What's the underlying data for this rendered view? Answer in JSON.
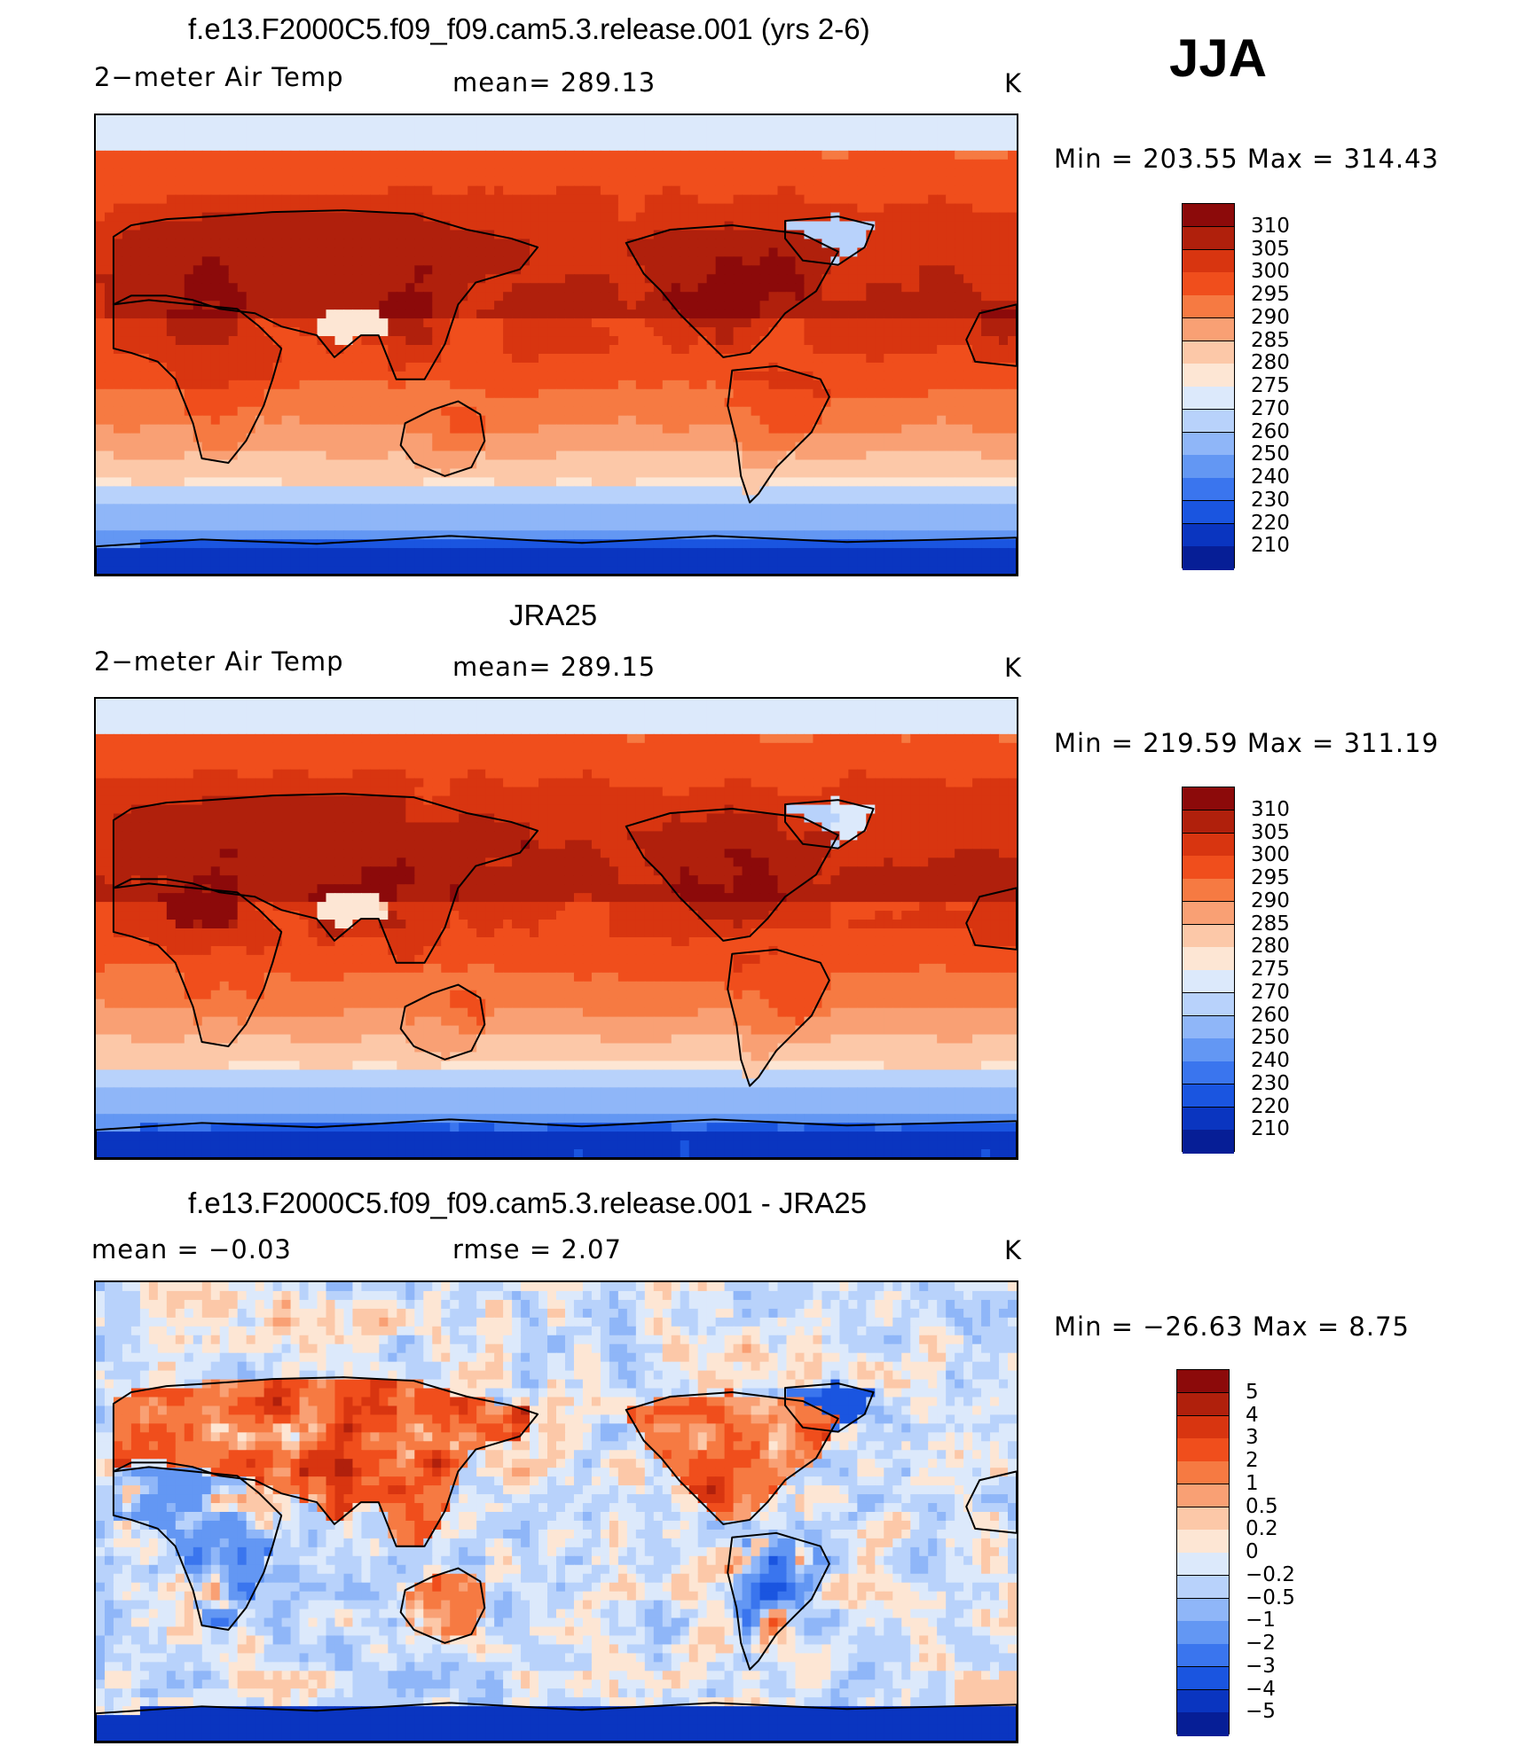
{
  "season": "JJA",
  "panels": [
    {
      "id": "model",
      "title": "f.e13.F2000C5.f09_f09.cam5.3.release.001 (yrs 2-6)",
      "left_label": "2−meter Air Temp",
      "center_label": "mean=  289.13",
      "units": "K",
      "minmax": "Min  =  203.55  Max  =  314.43",
      "field": "abs_model",
      "colorbar": {
        "colors": [
          "#8c0a0a",
          "#b0200c",
          "#d83510",
          "#f04e1c",
          "#f67a42",
          "#f9a074",
          "#fcc8a8",
          "#fde6d4",
          "#dce9fb",
          "#b8d2fb",
          "#8fb6f8",
          "#6397f3",
          "#3a75ee",
          "#1a55e0",
          "#0a35c0",
          "#061e96"
        ],
        "ticks": [
          "310",
          "305",
          "300",
          "295",
          "290",
          "285",
          "280",
          "275",
          "270",
          "260",
          "250",
          "240",
          "230",
          "220",
          "210"
        ]
      }
    },
    {
      "id": "obs",
      "title": "JRA25",
      "left_label": "2−meter Air Temp",
      "center_label": "mean=  289.15",
      "units": "K",
      "minmax": "Min  =  219.59  Max  =  311.19",
      "field": "abs_obs",
      "colorbar": {
        "colors": [
          "#8c0a0a",
          "#b0200c",
          "#d83510",
          "#f04e1c",
          "#f67a42",
          "#f9a074",
          "#fcc8a8",
          "#fde6d4",
          "#dce9fb",
          "#b8d2fb",
          "#8fb6f8",
          "#6397f3",
          "#3a75ee",
          "#1a55e0",
          "#0a35c0",
          "#061e96"
        ],
        "ticks": [
          "310",
          "305",
          "300",
          "295",
          "290",
          "285",
          "280",
          "275",
          "270",
          "260",
          "250",
          "240",
          "230",
          "220",
          "210"
        ]
      }
    },
    {
      "id": "diff",
      "title": "f.e13.F2000C5.f09_f09.cam5.3.release.001 - JRA25",
      "left_label": "mean  =   −0.03",
      "center_label": "rmse  =     2.07",
      "units": "K",
      "minmax": "Min  =  −26.63  Max  =      8.75",
      "field": "diff",
      "colorbar": {
        "colors": [
          "#8c0a0a",
          "#b0200c",
          "#d83510",
          "#f04e1c",
          "#f67a42",
          "#f9a074",
          "#fcc8a8",
          "#fde6d4",
          "#dce9fb",
          "#b8d2fb",
          "#8fb6f8",
          "#6397f3",
          "#3a75ee",
          "#1a55e0",
          "#0a35c0",
          "#061e96"
        ],
        "ticks": [
          "5",
          "4",
          "3",
          "2",
          "1",
          "0.5",
          "0.2",
          "0",
          "−0.2",
          "−0.5",
          "−1",
          "−2",
          "−3",
          "−4",
          "−5"
        ]
      }
    }
  ]
}
